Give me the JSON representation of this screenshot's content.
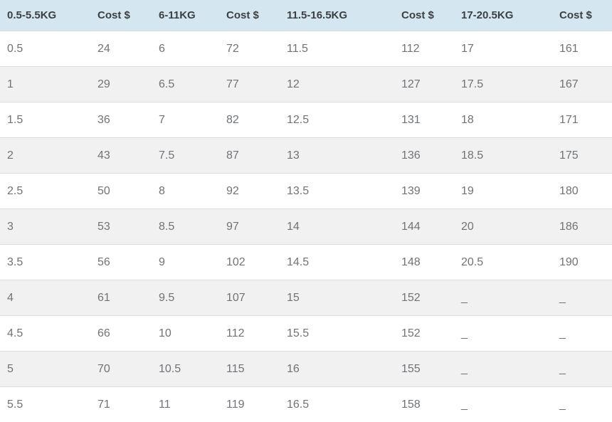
{
  "chart_data": {
    "type": "table",
    "title": "",
    "columns": [
      "0.5-5.5KG",
      "Cost $",
      "6-11KG",
      "Cost $",
      "11.5-16.5KG",
      "Cost $",
      "17-20.5KG",
      "Cost $"
    ],
    "rows": [
      [
        "0.5",
        "24",
        "6",
        "72",
        "11.5",
        "112",
        "17",
        "161"
      ],
      [
        "1",
        "29",
        "6.5",
        "77",
        "12",
        "127",
        "17.5",
        "167"
      ],
      [
        "1.5",
        "36",
        "7",
        "82",
        "12.5",
        "131",
        "18",
        "171"
      ],
      [
        "2",
        "43",
        "7.5",
        "87",
        "13",
        "136",
        "18.5",
        "175"
      ],
      [
        "2.5",
        "50",
        "8",
        "92",
        "13.5",
        "139",
        "19",
        "180"
      ],
      [
        "3",
        "53",
        "8.5",
        "97",
        "14",
        "144",
        "20",
        "186"
      ],
      [
        "3.5",
        "56",
        "9",
        "102",
        "14.5",
        "148",
        "20.5",
        "190"
      ],
      [
        "4",
        "61",
        "9.5",
        "107",
        "15",
        "152",
        "_",
        "_"
      ],
      [
        "4.5",
        "66",
        "10",
        "112",
        "15.5",
        "152",
        "_",
        "_"
      ],
      [
        "5",
        "70",
        "10.5",
        "115",
        "16",
        "155",
        "_",
        "_"
      ],
      [
        "5.5",
        "71",
        "11",
        "119",
        "16.5",
        "158",
        "_",
        "_"
      ]
    ],
    "layout_hints": {
      "zebra_striping": "even rows shaded",
      "grid": "horizontal row borders only",
      "last_row_clipped_by_viewport": true
    }
  },
  "colors": {
    "header_bg": "#d4e7f1",
    "header_text": "#3c3f41",
    "body_text": "#6f7377",
    "row_alt_bg": "#f1f1f1",
    "row_border": "#dcdcdc"
  }
}
